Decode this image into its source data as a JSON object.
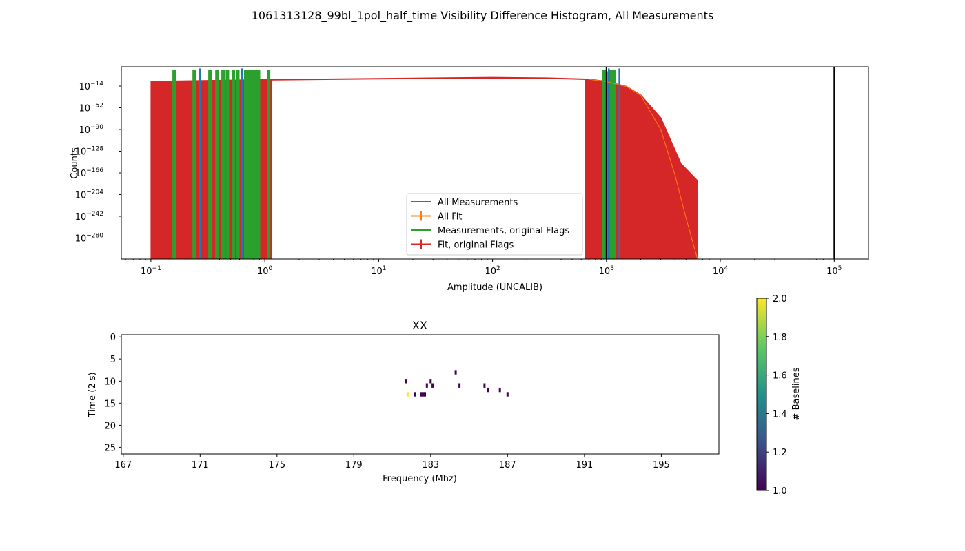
{
  "title": "1061313128_99bl_1pol_half_time Visibility Difference Histogram, All Measurements",
  "colors": {
    "all_measurements": "#1f77b4",
    "all_fit": "#ff7f0e",
    "meas_orig_flags": "#2ca02c",
    "fit_orig_flags": "#d62728",
    "colormap": [
      "#440154",
      "#3b528b",
      "#21918c",
      "#5ec962",
      "#fde725"
    ]
  },
  "chart_data": [
    {
      "type": "histogram",
      "xlabel": "Amplitude (UNCALIB)",
      "ylabel": "Counts",
      "xscale": "log",
      "yscale": "log",
      "xlim": [
        0.055,
        200000
      ],
      "x_ticks": [
        {
          "value": 0.1,
          "base": "10",
          "exp": "−1"
        },
        {
          "value": 1,
          "base": "10",
          "exp": "0"
        },
        {
          "value": 10,
          "base": "10",
          "exp": "1"
        },
        {
          "value": 100,
          "base": "10",
          "exp": "2"
        },
        {
          "value": 1000,
          "base": "10",
          "exp": "3"
        },
        {
          "value": 10000,
          "base": "10",
          "exp": "4"
        },
        {
          "value": 100000,
          "base": "10",
          "exp": "5"
        }
      ],
      "y_ticks": [
        {
          "exp_value": -14,
          "base": "10",
          "exp": "−14"
        },
        {
          "exp_value": -52,
          "base": "10",
          "exp": "−52"
        },
        {
          "exp_value": -90,
          "base": "10",
          "exp": "−90"
        },
        {
          "exp_value": -128,
          "base": "10",
          "exp": "−128"
        },
        {
          "exp_value": -166,
          "base": "10",
          "exp": "−166"
        },
        {
          "exp_value": -204,
          "base": "10",
          "exp": "−204"
        },
        {
          "exp_value": -242,
          "base": "10",
          "exp": "−242"
        },
        {
          "exp_value": -280,
          "base": "10",
          "exp": "−280"
        }
      ],
      "vertical_lines_x": [
        1000,
        100000
      ],
      "legend_location": "lower center",
      "legend": [
        {
          "label": "All Measurements",
          "color_key": "all_measurements",
          "marker": "line"
        },
        {
          "label": "All Fit",
          "color_key": "all_fit",
          "marker": "errorbar"
        },
        {
          "label": "Measurements, original Flags",
          "color_key": "meas_orig_flags",
          "marker": "line"
        },
        {
          "label": "Fit, original Flags",
          "color_key": "fit_orig_flags",
          "marker": "errorbar"
        }
      ],
      "series": [
        {
          "name": "All Measurements",
          "color_key": "all_measurements",
          "x": [
            0.27,
            0.63,
            1050,
            1300
          ],
          "log10_counts": [
            0,
            0,
            0,
            0
          ]
        },
        {
          "name": "Measurements, original Flags",
          "color_key": "meas_orig_flags",
          "x": [
            0.16,
            0.24,
            0.33,
            0.38,
            0.43,
            0.47,
            0.53,
            0.58,
            0.68,
            0.72,
            0.76,
            0.8,
            0.84,
            0.88,
            1.08,
            950,
            980,
            1100,
            1170
          ],
          "log10_counts": [
            0,
            0,
            0,
            0,
            0,
            0,
            0,
            0,
            0,
            0,
            0,
            0,
            0,
            0,
            0,
            0,
            0,
            0,
            0
          ]
        },
        {
          "name": "Fit, original Flags",
          "color_key": "fit_orig_flags",
          "fill_x_range": [
            0.1,
            6300
          ],
          "x": [
            0.1,
            1,
            10,
            100,
            300,
            700,
            1000,
            1500,
            2000,
            3000,
            4500,
            6300
          ],
          "log10_counts": [
            -6,
            -3,
            -1,
            1,
            0,
            -2,
            -6,
            -15,
            -30,
            -70,
            -150,
            -180
          ]
        },
        {
          "name": "All Fit",
          "color_key": "all_fit",
          "x": [
            700,
            1000,
            1500,
            2000,
            3000,
            4000,
            5000,
            6300
          ],
          "log10_counts": [
            -2,
            -6,
            -15,
            -30,
            -90,
            -170,
            -245,
            -320
          ]
        }
      ]
    },
    {
      "type": "heatmap",
      "title": "XX",
      "xlabel": "Frequency (Mhz)",
      "ylabel": "Time (2 s)",
      "xlim": [
        166.9,
        198.0
      ],
      "ylim": [
        26.5,
        -0.5
      ],
      "x_ticks": [
        "167",
        "171",
        "175",
        "179",
        "183",
        "187",
        "191",
        "195"
      ],
      "x_tick_values": [
        167,
        171,
        175,
        179,
        183,
        187,
        191,
        195
      ],
      "y_ticks": [
        "0",
        "5",
        "10",
        "15",
        "20",
        "25"
      ],
      "y_tick_values": [
        0,
        5,
        10,
        15,
        20,
        25
      ],
      "colorbar": {
        "label": "# Baselines",
        "range": [
          1.0,
          2.0
        ],
        "ticks": [
          "1.0",
          "1.2",
          "1.4",
          "1.6",
          "1.8",
          "2.0"
        ],
        "tick_values": [
          1.0,
          1.2,
          1.4,
          1.6,
          1.8,
          2.0
        ]
      },
      "cells": [
        {
          "freq": 181.7,
          "time": 10,
          "value": 1
        },
        {
          "freq": 181.8,
          "time": 13,
          "value": 2
        },
        {
          "freq": 182.2,
          "time": 13,
          "value": 1
        },
        {
          "freq": 182.5,
          "time": 13,
          "value": 1
        },
        {
          "freq": 182.6,
          "time": 13,
          "value": 1
        },
        {
          "freq": 182.7,
          "time": 13,
          "value": 1
        },
        {
          "freq": 182.8,
          "time": 11,
          "value": 1
        },
        {
          "freq": 183.0,
          "time": 10,
          "value": 1
        },
        {
          "freq": 183.1,
          "time": 11,
          "value": 1
        },
        {
          "freq": 184.3,
          "time": 8,
          "value": 1
        },
        {
          "freq": 184.5,
          "time": 11,
          "value": 1
        },
        {
          "freq": 185.8,
          "time": 11,
          "value": 1
        },
        {
          "freq": 186.0,
          "time": 12,
          "value": 1
        },
        {
          "freq": 186.6,
          "time": 12,
          "value": 1
        },
        {
          "freq": 187.0,
          "time": 13,
          "value": 1
        }
      ]
    }
  ]
}
